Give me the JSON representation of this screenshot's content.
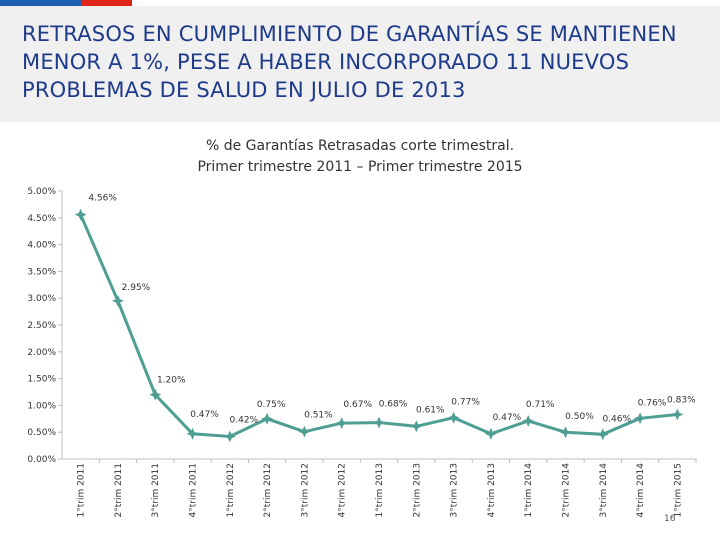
{
  "header": {
    "title": "RETRASOS EN CUMPLIMIENTO DE GARANTÍAS SE MANTIENEN MENOR A 1%, PESE A HABER INCORPORADO 11 NUEVOS PROBLEMAS DE SALUD EN JULIO DE 2013"
  },
  "colors": {
    "accent_blue": "#1f5fb0",
    "accent_red": "#e1251b",
    "title_blue": "#1e3a8a",
    "header_bg": "#f0f0f0",
    "line_color": "#4e9e93"
  },
  "page_number": "16",
  "chart_data": {
    "type": "line",
    "title": "% de Garantías Retrasadas corte trimestral.",
    "subtitle": "Primer trimestre 2011 – Primer trimestre 2015",
    "categories": [
      "1°trim 2011",
      "2°trim 2011",
      "3°trim 2011",
      "4°trim 2011",
      "1°trim 2012",
      "2°trim 2012",
      "3°trim 2012",
      "4°trim 2012",
      "1°trim 2013",
      "2°trim 2013",
      "3°trim 2013",
      "4°trim 2013",
      "1°trim 2014",
      "2°trim 2014",
      "3°trim 2014",
      "4°trim 2014",
      "1°trim 2015"
    ],
    "values": [
      4.56,
      2.95,
      1.2,
      0.47,
      0.42,
      0.75,
      0.51,
      0.67,
      0.68,
      0.61,
      0.77,
      0.47,
      0.71,
      0.5,
      0.46,
      0.76,
      0.83
    ],
    "labels": [
      "4.56%",
      "2.95%",
      "1.20%",
      "0.47%",
      "0.42%",
      "0.75%",
      "0.51%",
      "0.67%",
      "0.68%",
      "0.61%",
      "0.77%",
      "0.47%",
      "0.71%",
      "0.50%",
      "0.46%",
      "0.76%",
      "0.83%"
    ],
    "yticks": [
      0,
      0.5,
      1.0,
      1.5,
      2.0,
      2.5,
      3.0,
      3.5,
      4.0,
      4.5,
      5.0
    ],
    "ytick_labels": [
      "0.00%",
      "0.50%",
      "1.00%",
      "1.50%",
      "2.00%",
      "2.50%",
      "3.00%",
      "3.50%",
      "4.00%",
      "4.50%",
      "5.00%"
    ],
    "ylim": [
      0,
      5
    ],
    "xlabel": "",
    "ylabel": "",
    "grid": false,
    "legend": "none"
  }
}
